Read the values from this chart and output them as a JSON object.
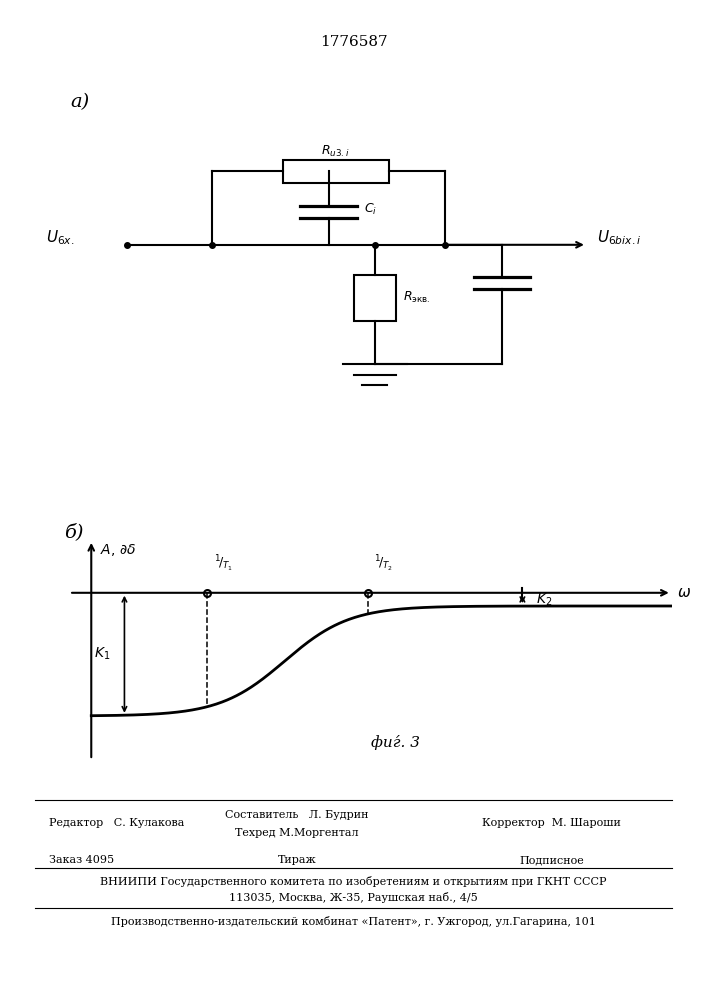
{
  "title": "1776587",
  "title_fontsize": 11,
  "label_a": "а)",
  "label_b": "б)",
  "footer": {
    "editor": "Редактор   С. Кулакова",
    "composer": "Составитель   Л. Будрин",
    "techred": "Техред М.Моргентал",
    "corrector": "Корректор  М. Шароши",
    "order": "Заказ 4095",
    "tirazh": "Тираж",
    "podpisnoe": "Подписное",
    "vniiipi": "ВНИИПИ Государственного комитета по изобретениям и открытиям при ГКНТ СССР",
    "address": "113035, Москва, Ж-35, Раушская наб., 4/5",
    "production": "Производственно-издательский комбинат «Патент», г. Ужгород, ул.Гагарина, 101"
  }
}
